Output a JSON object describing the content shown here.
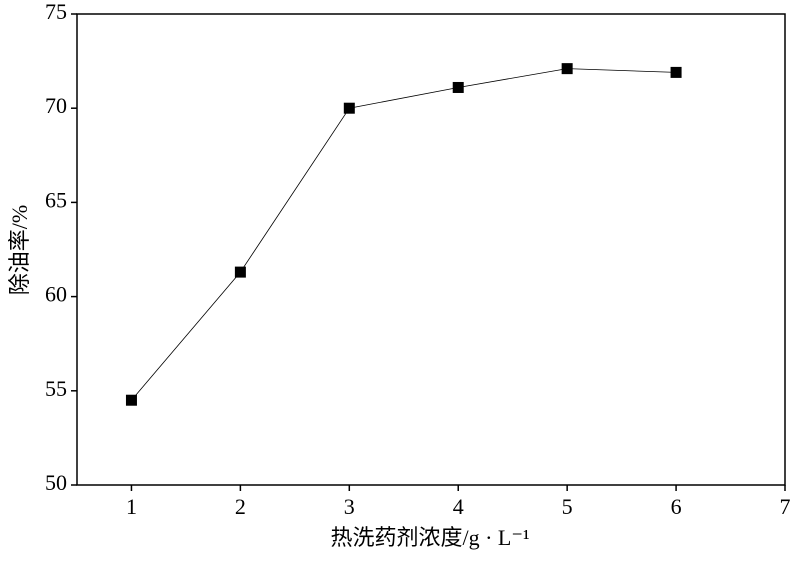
{
  "chart_data": {
    "type": "line",
    "xlabel": "热洗药剂浓度/g · L⁻¹",
    "ylabel": "除油率/%",
    "x": [
      1,
      2,
      3,
      4,
      5,
      6
    ],
    "series": [
      {
        "color": "#000000",
        "values": [
          54.5,
          61.3,
          70.0,
          71.1,
          72.1,
          71.9
        ]
      }
    ],
    "xlim": [
      0.5,
      7
    ],
    "xticks": [
      1,
      2,
      3,
      4,
      5,
      6,
      7
    ],
    "ylim": [
      50,
      75
    ],
    "yticks": [
      50,
      55,
      60,
      65,
      70,
      75
    ],
    "marker": "square"
  }
}
